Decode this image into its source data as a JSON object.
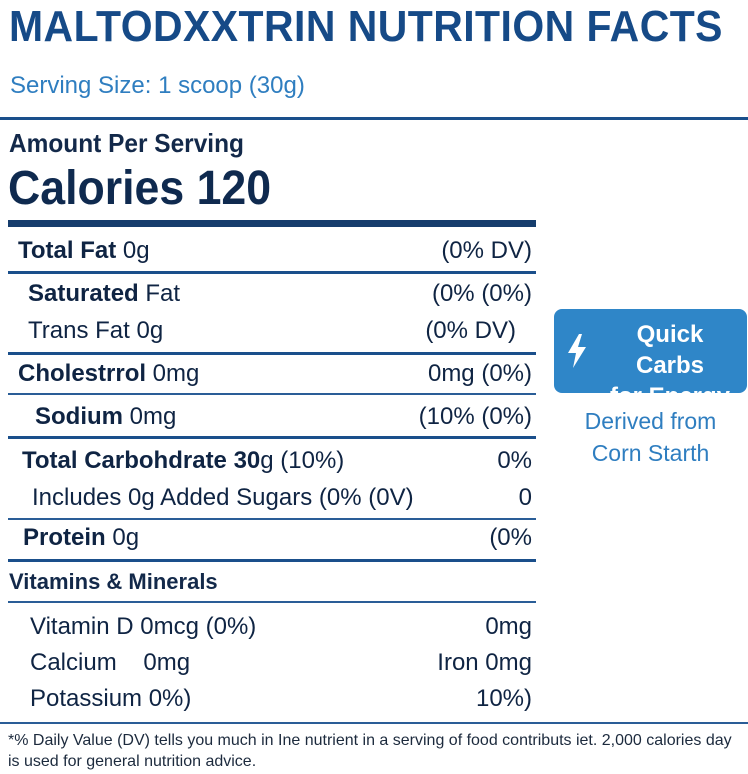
{
  "title": "MALTODXXTRIN NUTRITION FACTS",
  "serving_size": "Serving Size: 1 scoop (30g)",
  "amount_per_serving": "Amount Per Serving",
  "calories": "Calories 120",
  "rows": [
    {
      "bold": "Total Fat",
      "rest": " 0g",
      "right": "(0% DV)"
    },
    {
      "bold": "Saturated",
      "rest": " Fat",
      "right": "(0% (0%)"
    },
    {
      "bold": "",
      "rest": "Trans Fat 0g",
      "right": "(0% DV)"
    },
    {
      "bold": "Cholestrrol",
      "rest": " 0mg",
      "right": "0mg (0%)"
    },
    {
      "bold": "Sodium",
      "rest": " 0mg",
      "right": "(10%  (0%)"
    },
    {
      "bold": "Total Carbohdrate 30",
      "rest": "g (10%)",
      "right": "0%"
    },
    {
      "bold": "",
      "rest": "Includes 0g Added Sugars (0% (0V)",
      "right": "0"
    },
    {
      "bold": "Protein",
      "rest": " 0g",
      "right": "(0%"
    }
  ],
  "vitamins_heading": "Vitamins & Minerals",
  "vitamins": [
    {
      "left": "Vitamin D 0mcg (0%)",
      "right": "0mg"
    },
    {
      "left": "Calcium    0mg",
      "right": "Iron 0mg"
    },
    {
      "left": "Potassium 0%)",
      "right": "10%)"
    }
  ],
  "badge": {
    "line1": "Quick Carbs",
    "line2": "for Energy",
    "icon": "lightning-bolt-icon"
  },
  "derived": {
    "line1": "Derived from",
    "line2": "Corn Starth"
  },
  "footnote": "*% Daily Value (DV) tells you much in Ine nutrient in a serving of food contributs iet. 2,000 calories day is used for general nutrition advice.",
  "colors": {
    "title": "#164a87",
    "accent": "#2f86c8",
    "text": "#0f2443"
  }
}
